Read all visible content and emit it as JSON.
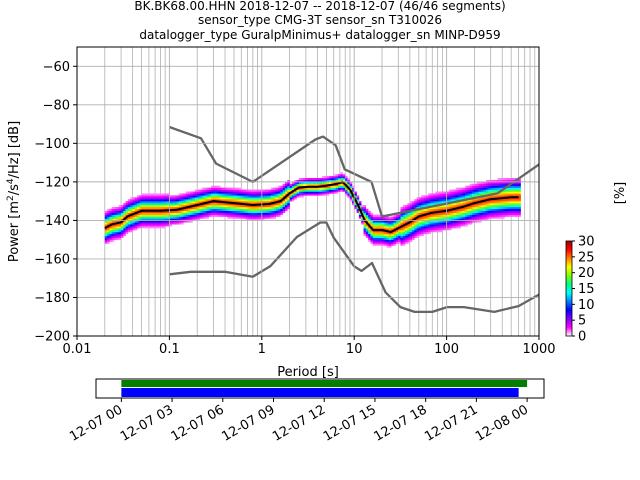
{
  "header": {
    "title_line1": "BK.BK68.00.HHN   2018-12-07 -- 2018-12-07  (46/46 segments)",
    "title_line2": "sensor_type CMG-3T sensor_sn T310026",
    "title_line3": "datalogger_type GuralpMinimus+ datalogger_sn MINP-D959"
  },
  "chart_data": [
    {
      "type": "heatmap",
      "xlabel": "Period [s]",
      "ylabel_parts": [
        "Power [m",
        "2",
        "/s",
        "4",
        "/Hz] [dB]"
      ],
      "x_scale": "log",
      "xlim": [
        0.01,
        1000
      ],
      "ylim": [
        -200,
        -50
      ],
      "x_tick_values": [
        0.01,
        0.1,
        1,
        10,
        100,
        1000
      ],
      "x_tick_labels": [
        "0.01",
        "0.1",
        "1",
        "10",
        "100",
        "1000"
      ],
      "y_tick_values": [
        -200,
        -180,
        -160,
        -140,
        -120,
        -100,
        -80,
        -60
      ],
      "y_tick_labels": [
        "−200",
        "−180",
        "−160",
        "−140",
        "−120",
        "−100",
        "−80",
        "−60"
      ],
      "grid": true,
      "colorbar": {
        "label": "[%]",
        "range": [
          0,
          30
        ],
        "tick_values": [
          0,
          5,
          10,
          15,
          20,
          25,
          30
        ],
        "tick_labels": [
          "0",
          "5",
          "10",
          "15",
          "20",
          "25",
          "30"
        ],
        "colormap_stops": [
          "#ffffff",
          "#ff00ff",
          "#7f00ff",
          "#0000ff",
          "#0080ff",
          "#00ffff",
          "#00ff80",
          "#80ff00",
          "#ffff00",
          "#ff8000",
          "#ff0000",
          "#a00000"
        ]
      },
      "series": [
        {
          "role": "high-noise-model",
          "color": "#666666",
          "x": [
            0.1,
            0.22,
            0.32,
            0.8,
            3.8,
            4.6,
            6.3,
            7.9,
            15.4,
            20,
            354.8,
            1000
          ],
          "y": [
            -91.5,
            -97.4,
            -110.5,
            -120.0,
            -98.0,
            -96.5,
            -101.0,
            -113.5,
            -120.0,
            -138.0,
            -126.0,
            -111.0
          ]
        },
        {
          "role": "low-noise-model",
          "color": "#666666",
          "x": [
            0.1,
            0.17,
            0.4,
            0.8,
            1.24,
            2.4,
            4.3,
            5.0,
            6.0,
            10.0,
            12.0,
            15.6,
            21.9,
            31.6,
            45.0,
            70.0,
            101.0,
            154.0,
            328.0,
            600.0,
            1000.0
          ],
          "y": [
            -168.0,
            -166.7,
            -166.7,
            -169.2,
            -163.7,
            -148.6,
            -141.1,
            -141.1,
            -149.0,
            -163.8,
            -166.2,
            -162.1,
            -177.5,
            -185.0,
            -187.5,
            -187.5,
            -185.0,
            -185.0,
            -187.5,
            -184.5,
            -178.5
          ]
        },
        {
          "role": "mean",
          "color": "#000000",
          "x": [
            0.02,
            0.024,
            0.03,
            0.035,
            0.05,
            0.08,
            0.12,
            0.2,
            0.3,
            0.5,
            0.8,
            1.2,
            1.6,
            2.0,
            2.5,
            3.2,
            4.0,
            5.0,
            6.5,
            7.5,
            9.0,
            11.0,
            13.0,
            16.0,
            20.0,
            25.0,
            30.0,
            40.0,
            50.0,
            70.0,
            100.0,
            150.0,
            200.0,
            300.0,
            500.0,
            600.0
          ],
          "y": [
            -144,
            -142,
            -141,
            -138,
            -135,
            -135,
            -134.5,
            -132,
            -130,
            -131,
            -132,
            -131.5,
            -130,
            -126,
            -123,
            -122.5,
            -122.5,
            -122,
            -121,
            -120,
            -124,
            -132,
            -140,
            -145,
            -145,
            -146,
            -144,
            -141,
            -138,
            -136,
            -135,
            -133,
            -131,
            -129,
            -128,
            -128
          ]
        }
      ]
    },
    {
      "type": "timeline",
      "x_tick_labels": [
        "12-07 00",
        "12-07 03",
        "12-07 06",
        "12-07 09",
        "12-07 12",
        "12-07 15",
        "12-07 18",
        "12-07 21",
        "12-08 00"
      ],
      "x_range_hours": [
        -1.5,
        25.0
      ],
      "bars": [
        {
          "color": "#008000",
          "start_hour": 0,
          "end_hour": 24.0
        },
        {
          "color": "#0000ff",
          "start_hour": 0,
          "end_hour": 23.5
        }
      ]
    }
  ]
}
